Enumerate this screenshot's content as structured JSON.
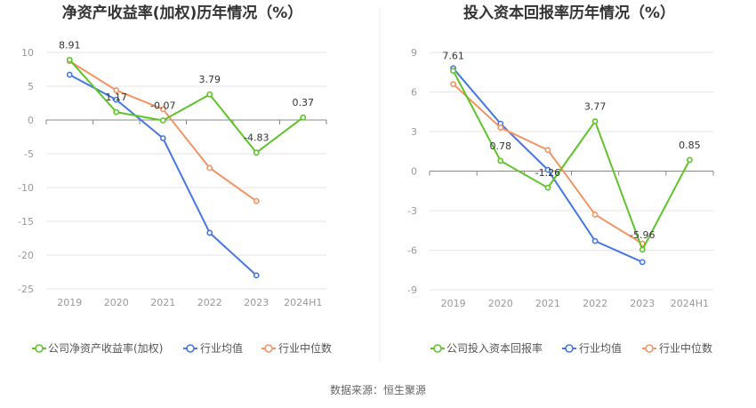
{
  "source": "数据来源：恒生聚源",
  "colors": {
    "company": "#5ec42a",
    "industry_avg": "#4677e0",
    "industry_median": "#f29463",
    "grid": "#e6e6e6",
    "zero": "#888888"
  },
  "chart_data": [
    {
      "type": "line",
      "title": "净资产收益率(加权)历年情况（%）",
      "categories": [
        "2019",
        "2020",
        "2021",
        "2022",
        "2023",
        "2024H1"
      ],
      "ylim": [
        -25,
        10
      ],
      "yticks": [
        10,
        5,
        0,
        -5,
        -10,
        -15,
        -20,
        -25
      ],
      "grid": true,
      "legend_position": "bottom",
      "series": [
        {
          "name": "公司净资产收益率(加权)",
          "color_key": "company",
          "values": [
            8.91,
            1.17,
            -0.07,
            3.79,
            -4.83,
            0.37
          ],
          "labels": [
            "8.91",
            "1.17",
            "-0.07",
            "3.79",
            "-4.83",
            "0.37"
          ]
        },
        {
          "name": "行业均值",
          "color_key": "industry_avg",
          "values": [
            6.7,
            3.0,
            -2.7,
            -16.7,
            -23.0,
            null
          ]
        },
        {
          "name": "行业中位数",
          "color_key": "industry_median",
          "values": [
            8.7,
            4.4,
            1.6,
            -7.1,
            -12.0,
            null
          ]
        }
      ]
    },
    {
      "type": "line",
      "title": "投入资本回报率历年情况（%）",
      "categories": [
        "2019",
        "2020",
        "2021",
        "2022",
        "2023",
        "2024H1"
      ],
      "ylim": [
        -9,
        9
      ],
      "yticks": [
        9,
        6,
        3,
        0,
        -3,
        -6,
        -9
      ],
      "grid": true,
      "legend_position": "bottom",
      "series": [
        {
          "name": "公司投入资本回报率",
          "color_key": "company",
          "values": [
            7.61,
            0.78,
            -1.26,
            3.77,
            -5.96,
            0.85
          ],
          "labels": [
            "7.61",
            "0.78",
            "-1.26",
            "3.77",
            "-5.96",
            "0.85"
          ]
        },
        {
          "name": "行业均值",
          "color_key": "industry_avg",
          "values": [
            7.8,
            3.6,
            0.1,
            -5.3,
            -6.9,
            null
          ]
        },
        {
          "name": "行业中位数",
          "color_key": "industry_median",
          "values": [
            6.6,
            3.3,
            1.6,
            -3.3,
            -5.5,
            null
          ]
        }
      ]
    }
  ]
}
